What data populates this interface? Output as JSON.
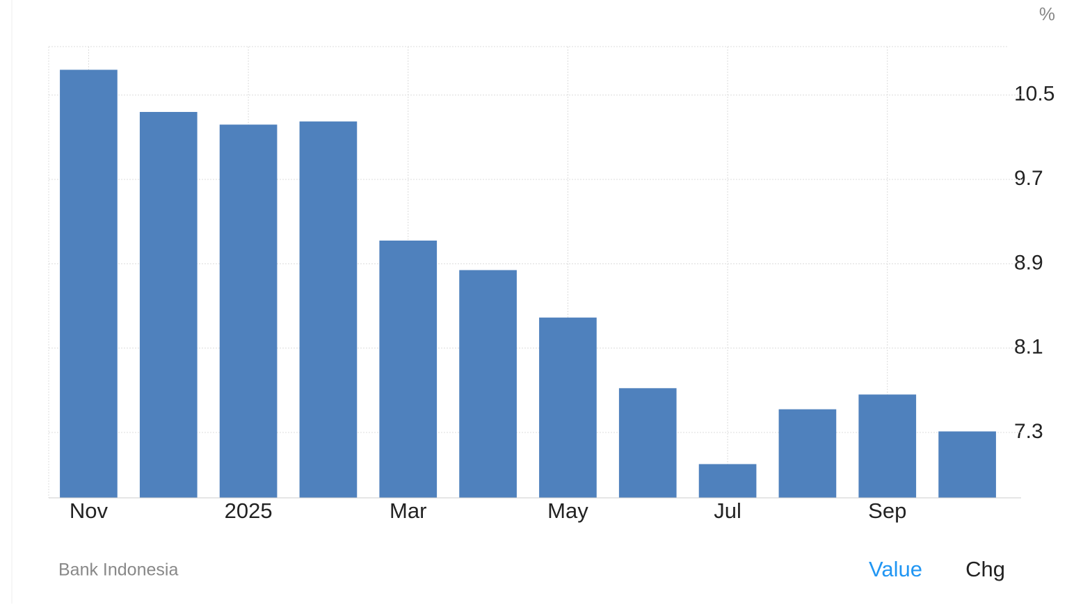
{
  "chart_data": {
    "type": "bar",
    "unit": "%",
    "categories": [
      "Nov",
      null,
      "2025",
      null,
      "Mar",
      null,
      "May",
      null,
      "Jul",
      null,
      "Sep",
      null
    ],
    "values": [
      10.74,
      10.34,
      10.22,
      10.25,
      9.12,
      8.84,
      8.39,
      7.72,
      7.0,
      7.52,
      7.66,
      7.31
    ],
    "color": "#4f81bd",
    "ylim": [
      6.68,
      10.96
    ],
    "yticks": [
      7.3,
      8.1,
      8.9,
      9.7,
      10.5
    ],
    "grid": true,
    "source": "Bank Indonesia",
    "buttons": [
      "Value",
      "Chg"
    ]
  }
}
